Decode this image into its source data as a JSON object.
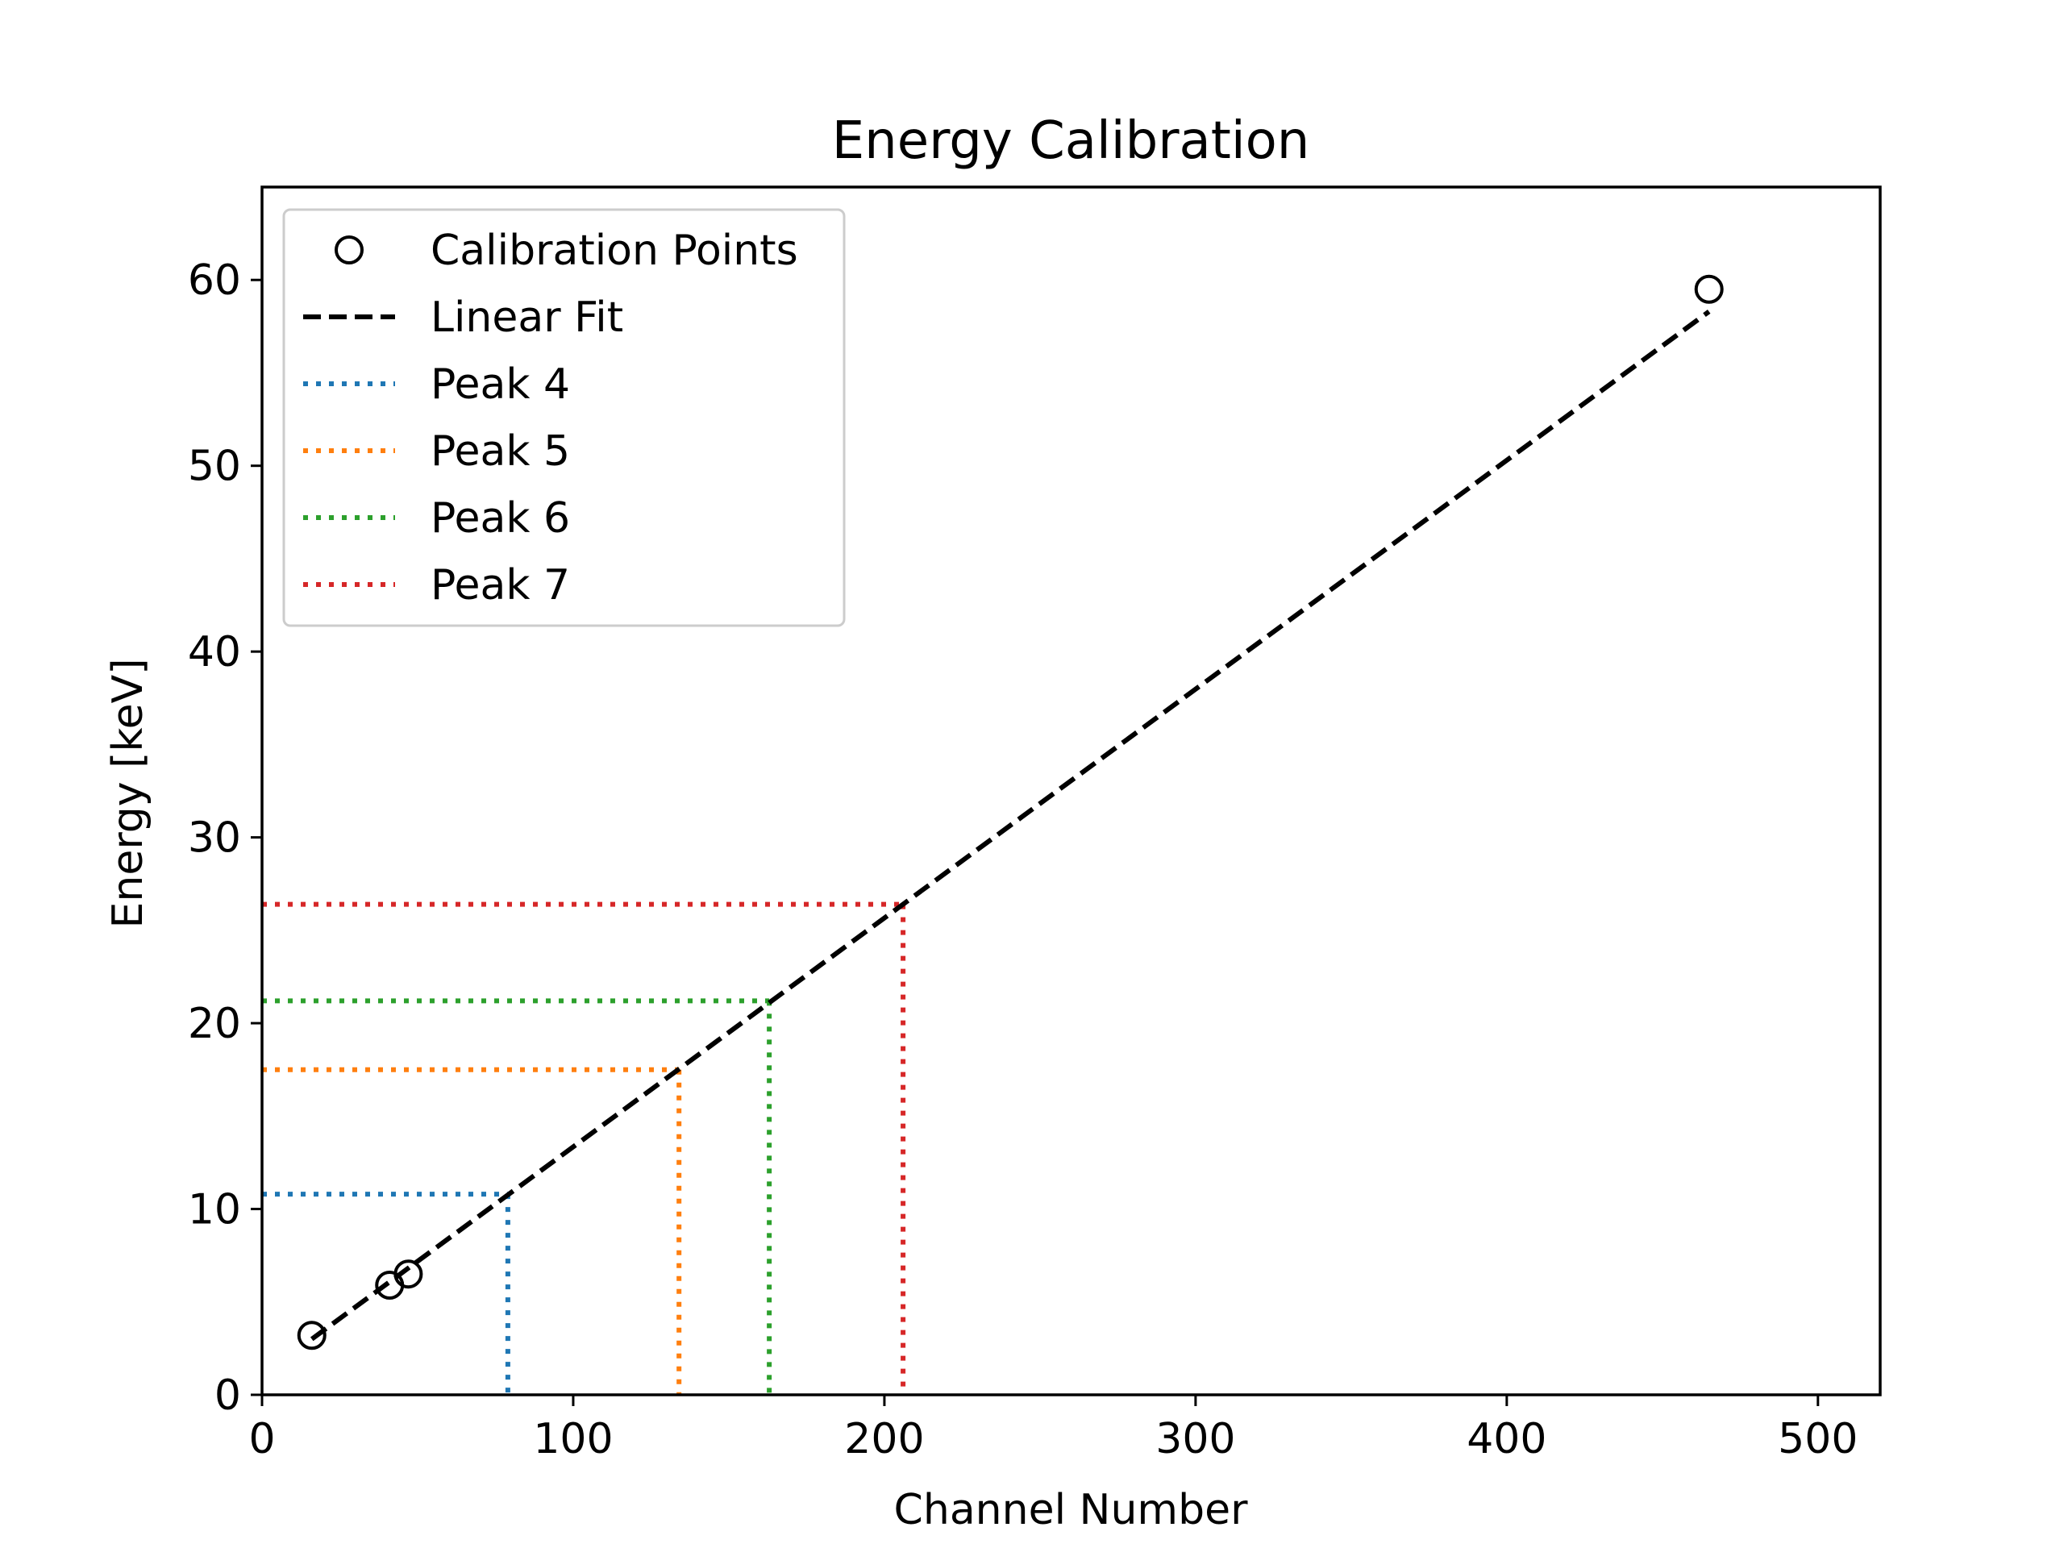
{
  "chart_data": {
    "type": "line",
    "title": "Energy Calibration",
    "xlabel": "Channel Number",
    "ylabel": "Energy [keV]",
    "xlim": [
      0,
      520
    ],
    "ylim": [
      0,
      65
    ],
    "xticks": [
      0,
      100,
      200,
      300,
      400,
      500
    ],
    "yticks": [
      0,
      10,
      20,
      30,
      40,
      50,
      60
    ],
    "grid": false,
    "legend_position": "top-left",
    "calibration_points": {
      "name": "Calibration Points",
      "marker": "open-circle",
      "color": "#000000",
      "x": [
        16,
        41,
        47,
        465
      ],
      "y": [
        3.2,
        5.9,
        6.5,
        59.5
      ]
    },
    "linear_fit": {
      "name": "Linear Fit",
      "style": "dashed",
      "color": "#000000",
      "x": [
        16,
        465
      ],
      "y": [
        3.0,
        58.3
      ]
    },
    "peaks": [
      {
        "name": "Peak 4",
        "channel": 79,
        "energy": 10.8,
        "color": "#1f77b4"
      },
      {
        "name": "Peak 5",
        "channel": 134,
        "energy": 17.5,
        "color": "#ff7f0e"
      },
      {
        "name": "Peak 6",
        "channel": 163,
        "energy": 21.2,
        "color": "#2ca02c"
      },
      {
        "name": "Peak 7",
        "channel": 206,
        "energy": 26.4,
        "color": "#d62728"
      }
    ]
  }
}
